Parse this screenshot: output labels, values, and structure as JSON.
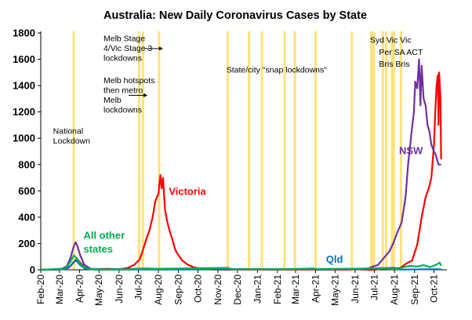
{
  "chart_data": {
    "type": "line",
    "title": "Australia: New Daily Coronavirus Cases by State",
    "xlabel": "",
    "ylabel": "",
    "x_range": [
      "2020-02-01",
      "2021-10-21"
    ],
    "ylim": [
      0,
      1800
    ],
    "y_ticks": [
      0,
      200,
      400,
      600,
      800,
      1000,
      1200,
      1400,
      1600,
      1800
    ],
    "x_ticks": [
      {
        "date": "2020-02-01",
        "label": "Feb-20"
      },
      {
        "date": "2020-03-01",
        "label": "Mar-20"
      },
      {
        "date": "2020-04-01",
        "label": "Apr-20"
      },
      {
        "date": "2020-05-01",
        "label": "May-20"
      },
      {
        "date": "2020-06-01",
        "label": "Jun-20"
      },
      {
        "date": "2020-07-01",
        "label": "Jul-20"
      },
      {
        "date": "2020-08-01",
        "label": "Aug-20"
      },
      {
        "date": "2020-09-01",
        "label": "Sep-20"
      },
      {
        "date": "2020-10-01",
        "label": "Oct-20"
      },
      {
        "date": "2020-11-01",
        "label": "Nov-20"
      },
      {
        "date": "2020-12-01",
        "label": "Dec-20"
      },
      {
        "date": "2021-01-01",
        "label": "Jan-21"
      },
      {
        "date": "2021-02-01",
        "label": "Feb-21"
      },
      {
        "date": "2021-03-01",
        "label": "Mar-21"
      },
      {
        "date": "2021-04-01",
        "label": "Apr-21"
      },
      {
        "date": "2021-05-01",
        "label": "May-21"
      },
      {
        "date": "2021-06-01",
        "label": "Jun-21"
      },
      {
        "date": "2021-07-01",
        "label": "Jul-21"
      },
      {
        "date": "2021-08-01",
        "label": "Aug-21"
      },
      {
        "date": "2021-09-01",
        "label": "Sep-21"
      },
      {
        "date": "2021-10-01",
        "label": "Oct-21"
      }
    ],
    "lockdown_lines": [
      "2020-03-23",
      "2020-07-02",
      "2020-07-08",
      "2020-08-02",
      "2020-11-16",
      "2020-12-19",
      "2021-01-08",
      "2021-02-12",
      "2021-02-28",
      "2021-04-01",
      "2021-05-27",
      "2021-06-26",
      "2021-06-30",
      "2021-07-14",
      "2021-07-19",
      "2021-07-28",
      "2021-07-31",
      "2021-08-11"
    ],
    "series": [
      {
        "name": "Victoria",
        "color": "#ff0000",
        "points": [
          [
            "2020-02-01",
            0
          ],
          [
            "2020-03-01",
            1
          ],
          [
            "2020-03-15",
            15
          ],
          [
            "2020-03-22",
            50
          ],
          [
            "2020-03-28",
            85
          ],
          [
            "2020-04-02",
            55
          ],
          [
            "2020-04-10",
            15
          ],
          [
            "2020-04-20",
            3
          ],
          [
            "2020-05-15",
            8
          ],
          [
            "2020-06-01",
            3
          ],
          [
            "2020-06-15",
            15
          ],
          [
            "2020-06-25",
            40
          ],
          [
            "2020-07-03",
            80
          ],
          [
            "2020-07-08",
            150
          ],
          [
            "2020-07-13",
            230
          ],
          [
            "2020-07-18",
            300
          ],
          [
            "2020-07-23",
            400
          ],
          [
            "2020-07-27",
            520
          ],
          [
            "2020-08-01",
            580
          ],
          [
            "2020-08-03",
            680
          ],
          [
            "2020-08-04",
            720
          ],
          [
            "2020-08-06",
            620
          ],
          [
            "2020-08-08",
            700
          ],
          [
            "2020-08-11",
            460
          ],
          [
            "2020-08-14",
            380
          ],
          [
            "2020-08-18",
            300
          ],
          [
            "2020-08-22",
            240
          ],
          [
            "2020-08-27",
            150
          ],
          [
            "2020-09-01",
            110
          ],
          [
            "2020-09-07",
            70
          ],
          [
            "2020-09-15",
            40
          ],
          [
            "2020-09-25",
            18
          ],
          [
            "2020-10-05",
            10
          ],
          [
            "2020-10-20",
            3
          ],
          [
            "2020-11-01",
            1
          ],
          [
            "2021-05-25",
            1
          ],
          [
            "2021-05-31",
            10
          ],
          [
            "2021-06-08",
            3
          ],
          [
            "2021-07-01",
            0
          ],
          [
            "2021-07-15",
            10
          ],
          [
            "2021-07-28",
            4
          ],
          [
            "2021-08-10",
            15
          ],
          [
            "2021-08-20",
            50
          ],
          [
            "2021-08-28",
            70
          ],
          [
            "2021-09-05",
            190
          ],
          [
            "2021-09-12",
            400
          ],
          [
            "2021-09-18",
            550
          ],
          [
            "2021-09-23",
            620
          ],
          [
            "2021-09-27",
            700
          ],
          [
            "2021-10-01",
            950
          ],
          [
            "2021-10-03",
            1200
          ],
          [
            "2021-10-05",
            1400
          ],
          [
            "2021-10-07",
            1480
          ],
          [
            "2021-10-08",
            1100
          ],
          [
            "2021-10-09",
            1500
          ],
          [
            "2021-10-11",
            1300
          ],
          [
            "2021-10-12",
            840
          ]
        ]
      },
      {
        "name": "NSW",
        "color": "#7030a0",
        "points": [
          [
            "2020-02-01",
            0
          ],
          [
            "2020-03-01",
            2
          ],
          [
            "2020-03-12",
            25
          ],
          [
            "2020-03-18",
            90
          ],
          [
            "2020-03-23",
            180
          ],
          [
            "2020-03-26",
            210
          ],
          [
            "2020-03-29",
            175
          ],
          [
            "2020-04-02",
            110
          ],
          [
            "2020-04-08",
            40
          ],
          [
            "2020-04-18",
            8
          ],
          [
            "2020-05-10",
            3
          ],
          [
            "2020-07-15",
            10
          ],
          [
            "2020-08-10",
            5
          ],
          [
            "2021-06-20",
            5
          ],
          [
            "2021-06-28",
            25
          ],
          [
            "2021-07-06",
            35
          ],
          [
            "2021-07-12",
            70
          ],
          [
            "2021-07-18",
            105
          ],
          [
            "2021-07-24",
            140
          ],
          [
            "2021-07-30",
            200
          ],
          [
            "2021-08-05",
            280
          ],
          [
            "2021-08-12",
            360
          ],
          [
            "2021-08-18",
            550
          ],
          [
            "2021-08-22",
            800
          ],
          [
            "2021-08-27",
            1030
          ],
          [
            "2021-08-31",
            1200
          ],
          [
            "2021-09-02",
            1430
          ],
          [
            "2021-09-05",
            1380
          ],
          [
            "2021-09-08",
            1600
          ],
          [
            "2021-09-10",
            1250
          ],
          [
            "2021-09-12",
            1550
          ],
          [
            "2021-09-15",
            1300
          ],
          [
            "2021-09-18",
            1250
          ],
          [
            "2021-09-21",
            1100
          ],
          [
            "2021-09-24",
            1050
          ],
          [
            "2021-09-27",
            950
          ],
          [
            "2021-10-01",
            900
          ],
          [
            "2021-10-04",
            870
          ],
          [
            "2021-10-08",
            800
          ],
          [
            "2021-10-12",
            800
          ]
        ]
      },
      {
        "name": "Qld",
        "color": "#0070c0",
        "points": [
          [
            "2020-02-01",
            0
          ],
          [
            "2020-03-10",
            5
          ],
          [
            "2020-03-18",
            30
          ],
          [
            "2020-03-23",
            60
          ],
          [
            "2020-03-27",
            70
          ],
          [
            "2020-04-02",
            35
          ],
          [
            "2020-04-10",
            8
          ],
          [
            "2020-04-25",
            1
          ],
          [
            "2021-01-10",
            4
          ],
          [
            "2021-01-20",
            1
          ],
          [
            "2021-03-28",
            10
          ],
          [
            "2021-04-05",
            1
          ],
          [
            "2021-08-01",
            15
          ],
          [
            "2021-08-10",
            2
          ],
          [
            "2021-10-12",
            5
          ]
        ]
      },
      {
        "name": "All other states",
        "color": "#00b050",
        "points": [
          [
            "2020-02-01",
            0
          ],
          [
            "2020-03-10",
            10
          ],
          [
            "2020-03-18",
            60
          ],
          [
            "2020-03-23",
            110
          ],
          [
            "2020-03-27",
            90
          ],
          [
            "2020-04-03",
            40
          ],
          [
            "2020-04-12",
            10
          ],
          [
            "2020-05-01",
            2
          ],
          [
            "2020-11-16",
            15
          ],
          [
            "2020-11-25",
            2
          ],
          [
            "2021-07-20",
            10
          ],
          [
            "2021-08-05",
            5
          ],
          [
            "2021-08-15",
            20
          ],
          [
            "2021-08-25",
            30
          ],
          [
            "2021-09-05",
            25
          ],
          [
            "2021-09-15",
            35
          ],
          [
            "2021-09-25",
            20
          ],
          [
            "2021-10-05",
            40
          ],
          [
            "2021-10-10",
            55
          ],
          [
            "2021-10-12",
            30
          ]
        ]
      }
    ],
    "annotations": [
      {
        "lines": [
          "National",
          "Lockdown"
        ],
        "at": [
          "2020-02-20",
          1035
        ]
      },
      {
        "lines": [
          "Melb Stage",
          "4/Vic Stage 3",
          "lockdowns"
        ],
        "at": [
          "2020-05-08",
          1738
        ],
        "arrow_to_date": "2020-08-08"
      },
      {
        "lines": [
          "Melb hotspots",
          "then metro",
          "Melb",
          "lockdowns"
        ],
        "at": [
          "2020-05-08",
          1420
        ],
        "arrow_to_date": "2020-07-15"
      },
      {
        "lines": [
          "State/city \"snap lockdowns\""
        ],
        "at": [
          "2020-11-14",
          1500
        ]
      },
      {
        "lines": [
          "Syd Vic  Vic"
        ],
        "at": [
          "2021-06-24",
          1725
        ]
      },
      {
        "lines": [
          "Per SA  ACT"
        ],
        "at": [
          "2021-07-08",
          1634
        ]
      },
      {
        "lines": [
          "Bris Bris"
        ],
        "at": [
          "2021-07-08",
          1545
        ]
      }
    ],
    "series_labels": [
      {
        "text": "Victoria",
        "color": "#ff0000",
        "at": [
          "2020-08-17",
          570
        ]
      },
      {
        "text": "NSW",
        "color": "#7030a0",
        "at": [
          "2021-08-08",
          880
        ]
      },
      {
        "text": "All other",
        "color": "#00b050",
        "at": [
          "2020-04-07",
          236
        ]
      },
      {
        "text": "states",
        "color": "#00b050",
        "at": [
          "2020-04-07",
          130
        ]
      },
      {
        "text": "Qld",
        "color": "#0070c0",
        "at": [
          "2021-04-17",
          55
        ]
      }
    ],
    "grid": false,
    "legend": "none",
    "lockdown_line_color": "#ffe27a"
  }
}
